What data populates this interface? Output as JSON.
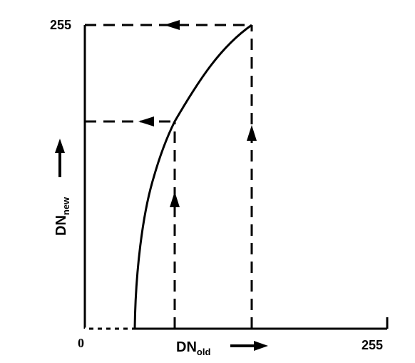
{
  "diagram": {
    "y_axis_top_label": "255",
    "x_axis_origin_label": "0",
    "x_axis_right_label": "255",
    "x_axis_label_main": "DN",
    "x_axis_label_sub": "old",
    "y_axis_label_main": "DN",
    "y_axis_label_sub": "new",
    "line_color": "#000000",
    "background_color": "#ffffff"
  }
}
